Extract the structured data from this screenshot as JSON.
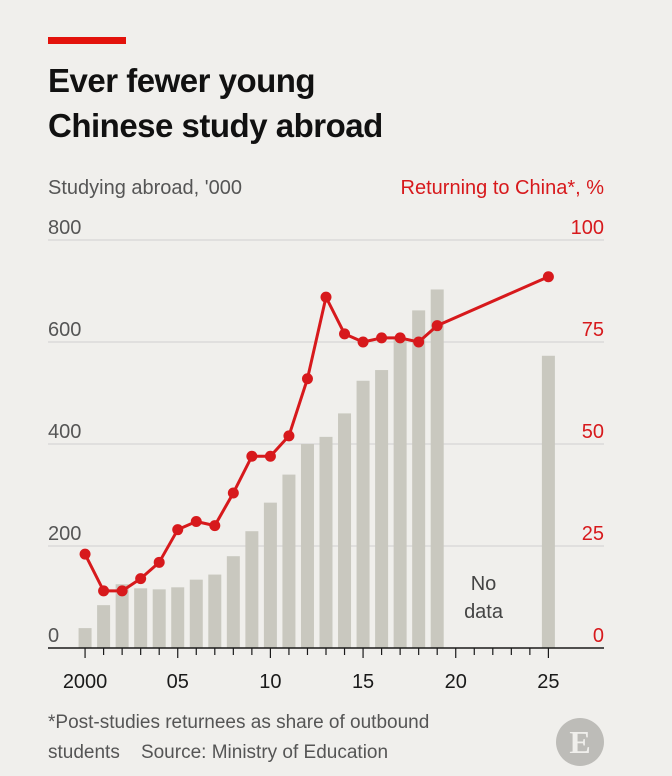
{
  "header": {
    "title_line1": "Ever fewer young",
    "title_line2": "Chinese study abroad"
  },
  "chart_data": {
    "type": "bar",
    "title": "Ever fewer young Chinese study abroad",
    "left_axis": {
      "label": "Studying abroad, '000",
      "ylim": [
        0,
        800
      ],
      "ticks": [
        "0",
        "200",
        "400",
        "600",
        "800"
      ],
      "tick_values": [
        0,
        200,
        400,
        600,
        800
      ]
    },
    "right_axis": {
      "label": "Returning to China*, %",
      "ylim": [
        0,
        100
      ],
      "ticks": [
        "0",
        "25",
        "50",
        "75",
        "100"
      ],
      "tick_values": [
        0,
        25,
        50,
        75,
        100
      ]
    },
    "x_ticks": [
      {
        "year": 2000,
        "label": "2000"
      },
      {
        "year": 2005,
        "label": "05"
      },
      {
        "year": 2010,
        "label": "10"
      },
      {
        "year": 2015,
        "label": "15"
      },
      {
        "year": 2020,
        "label": "20"
      },
      {
        "year": 2025,
        "label": "25"
      }
    ],
    "xlim": [
      1998,
      2028
    ],
    "bars": {
      "name": "Studying abroad, '000",
      "x": [
        2000,
        2001,
        2002,
        2003,
        2004,
        2005,
        2006,
        2007,
        2008,
        2009,
        2010,
        2011,
        2012,
        2013,
        2014,
        2015,
        2016,
        2017,
        2018,
        2019,
        2025
      ],
      "values": [
        39,
        84,
        125,
        117,
        115,
        119,
        134,
        144,
        180,
        229,
        285,
        340,
        400,
        414,
        460,
        524,
        545,
        608,
        662,
        703,
        573
      ]
    },
    "line": {
      "name": "Returning to China*, %",
      "x": [
        2000,
        2001,
        2002,
        2003,
        2004,
        2005,
        2006,
        2007,
        2008,
        2009,
        2010,
        2011,
        2012,
        2013,
        2014,
        2015,
        2016,
        2017,
        2018,
        2019,
        2025
      ],
      "values": [
        23,
        14,
        14,
        17,
        21,
        29,
        31,
        30,
        38,
        47,
        47,
        52,
        66,
        86,
        77,
        75,
        76,
        76,
        75,
        79,
        91
      ]
    },
    "annotation": {
      "year": 2021.5,
      "line1": "No",
      "line2": "data"
    },
    "colors": {
      "bars": "#c9c8bf",
      "line": "#d7191c",
      "grid": "#cfcfcf",
      "axis": "#1a1a1a",
      "left_tick_text": "#555555",
      "right_tick_text": "#d7191c"
    }
  },
  "footer": {
    "line1": "*Post-studies returnees as share of outbound",
    "line2": "students    Source: Ministry of Education",
    "logo": "E"
  }
}
